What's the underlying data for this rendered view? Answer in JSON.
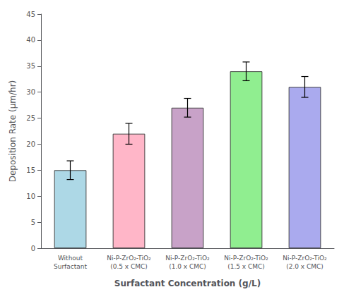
{
  "chart_data": {
    "type": "bar",
    "categories": [
      "Without\nSurfactant",
      "Ni-P-ZrO₂-TiO₂\n(0.5 x CMC)",
      "Ni-P-ZrO₂-TiO₂\n(1.0 x CMC)",
      "Ni-P-ZrO₂-TiO₂\n(1.5 x CMC)",
      "Ni-P-ZrO₂-TiO₂\n(2.0 x CMC)"
    ],
    "values": [
      15.0,
      22.0,
      27.0,
      34.0,
      31.0
    ],
    "errors": [
      1.8,
      2.0,
      1.8,
      1.8,
      2.0
    ],
    "colors": [
      "#ADD8E6",
      "#FFB6C8",
      "#C8A2C8",
      "#90EE90",
      "#AAAAEE"
    ],
    "ylabel": "Deposition Rate (μm/hr)",
    "xlabel": "Surfactant Concentration (g/L)",
    "ylim": [
      0,
      45
    ],
    "yticks": [
      0,
      5,
      10,
      15,
      20,
      25,
      30,
      35,
      40,
      45
    ],
    "grid": false
  }
}
